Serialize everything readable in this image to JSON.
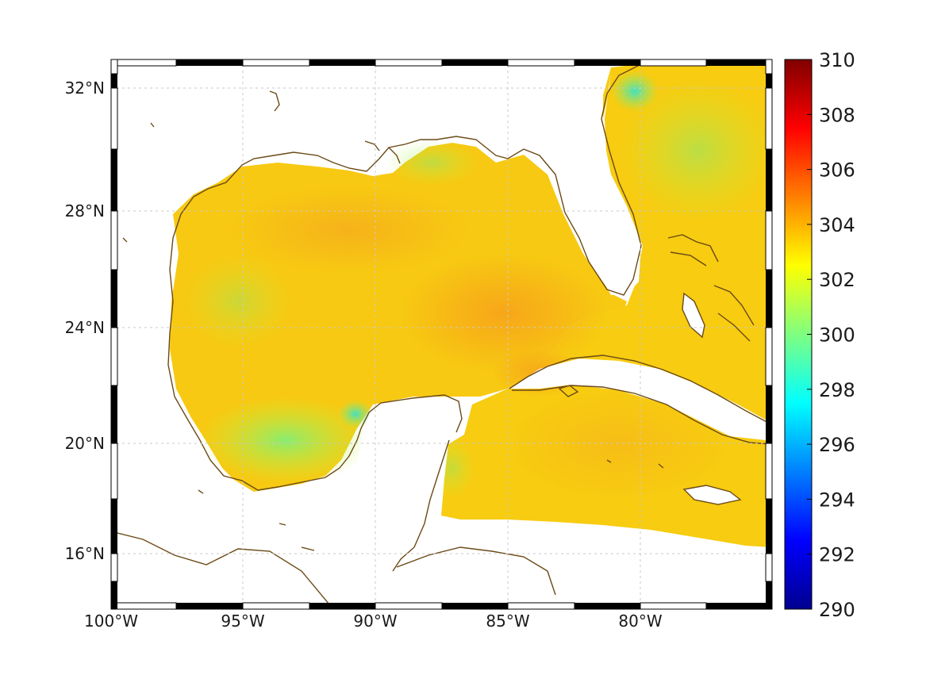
{
  "map": {
    "projection": "equidistant-cylindrical",
    "lon_range": [
      -100,
      -75
    ],
    "lat_range": [
      14.2,
      32.9
    ],
    "lon_ticks": [
      -100,
      -95,
      -90,
      -85,
      -80
    ],
    "lat_ticks": [
      16,
      20,
      24,
      28,
      32
    ],
    "lon_tick_labels": [
      "100°W",
      "95°W",
      "90°W",
      "85°W",
      "80°W"
    ],
    "lat_tick_labels": [
      "16°N",
      "20°N",
      "24°N",
      "28°N",
      "32°N"
    ],
    "grid": true,
    "frame_style": "alternating black-white border",
    "coastline_color": "#6b4a16",
    "field": "sea surface temperature",
    "field_units": "",
    "typical_value_range": [
      298,
      305
    ]
  },
  "colorbar": {
    "colormap": "jet",
    "vmin": 290,
    "vmax": 310,
    "tick_values": [
      290,
      292,
      294,
      296,
      298,
      300,
      302,
      304,
      306,
      308,
      310
    ],
    "tick_labels": [
      "290",
      "292",
      "294",
      "296",
      "298",
      "300",
      "302",
      "304",
      "306",
      "308",
      "310"
    ],
    "placement": "right"
  }
}
